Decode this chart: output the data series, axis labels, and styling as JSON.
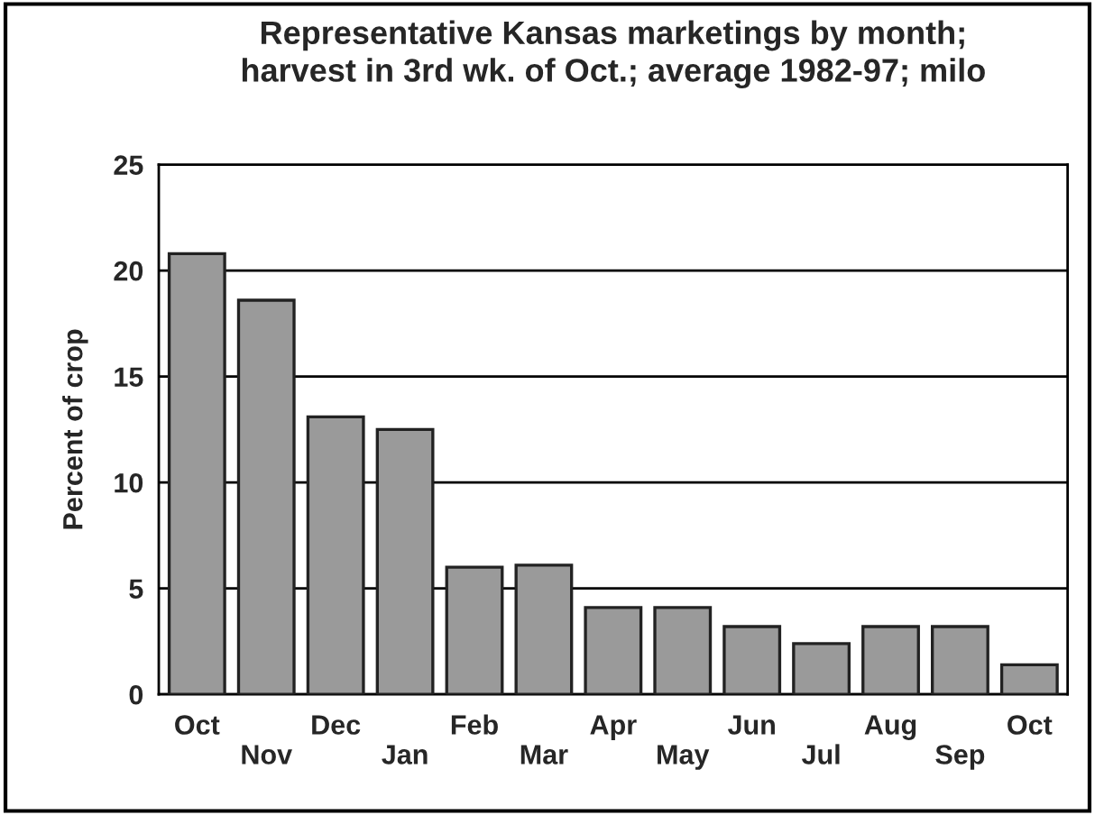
{
  "chart_data": {
    "type": "bar",
    "title": "Representative Kansas marketings by month;\nharvest in 3rd wk. of Oct.; average 1982-97; milo",
    "ylabel": "Percent of crop",
    "categories": [
      "Oct",
      "Nov",
      "Dec",
      "Jan",
      "Feb",
      "Mar",
      "Apr",
      "May",
      "Jun",
      "Jul",
      "Aug",
      "Sep",
      "Oct"
    ],
    "values": [
      20.8,
      18.6,
      13.1,
      12.5,
      6.0,
      6.1,
      4.1,
      4.1,
      3.2,
      2.4,
      3.2,
      3.2,
      1.4
    ],
    "color": "#9a9a9a",
    "ylim": [
      0,
      25
    ],
    "yticks": [
      0,
      5,
      10,
      15,
      20,
      25
    ],
    "grid": "y"
  }
}
